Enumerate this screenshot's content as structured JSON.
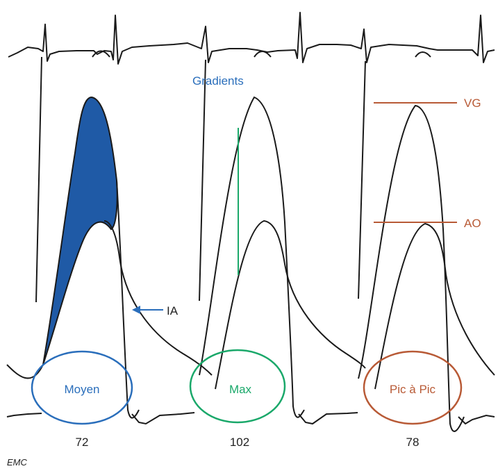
{
  "figure": {
    "title": "Gradients",
    "colors": {
      "ink": "#1a1a1a",
      "mean": "#2a6ebb",
      "mean_fill": "#1f5aa6",
      "max": "#1aa86a",
      "peak": "#b85a36"
    },
    "arrow_label": "IA",
    "line_labels": {
      "vg": "VG",
      "ao": "AO"
    },
    "panels": [
      {
        "label": "Moyen",
        "value": "72"
      },
      {
        "label": "Max",
        "value": "102"
      },
      {
        "label": "Pic à Pic",
        "value": "78"
      }
    ],
    "logo_text": "EMC"
  }
}
